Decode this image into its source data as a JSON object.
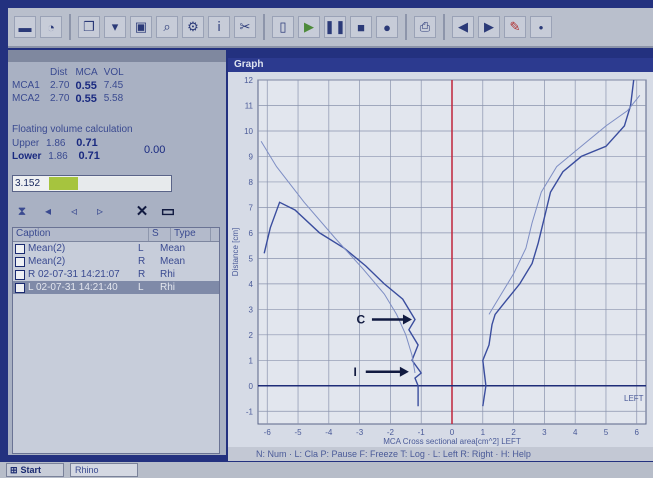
{
  "toolbar": {
    "icons": [
      "save-icon",
      "chart-icon",
      "copy-icon",
      "export-icon",
      "print-preview-icon",
      "settings-icon",
      "blank-icon",
      "play-icon",
      "pause-icon",
      "stop-icon",
      "record-icon",
      "printer-icon",
      "arrow-left-icon",
      "arrow-right-icon",
      "cursor-icon",
      "dot-icon"
    ]
  },
  "mca_table": {
    "headers": [
      "",
      "Dist",
      "MCA",
      "VOL"
    ],
    "rows": [
      [
        "MCA1",
        "2.70",
        "0.55",
        "7.45"
      ],
      [
        "MCA2",
        "2.70",
        "0.55",
        "5.58"
      ]
    ]
  },
  "floating_volume": {
    "title": "Floating volume calculation",
    "upper_label": "Upper",
    "upper_dist": "1.86",
    "upper_mca": "0.71",
    "lower_label": "Lower",
    "lower_dist": "1.86",
    "lower_mca": "0.71",
    "avg": "0.00"
  },
  "progress": {
    "value_text": "3.152",
    "fill_fraction": 0.24
  },
  "list": {
    "headers": [
      "Caption",
      "S",
      "Type"
    ],
    "rows": [
      {
        "caption": "Mean(2)",
        "side": "L",
        "type": "Mean",
        "selected": false
      },
      {
        "caption": "Mean(2)",
        "side": "R",
        "type": "Mean",
        "selected": false
      },
      {
        "caption": "R 02-07-31 14:21:07",
        "side": "R",
        "type": "Rhi",
        "selected": false
      },
      {
        "caption": "L 02-07-31 14:21:40",
        "side": "L",
        "type": "Rhi",
        "selected": true
      }
    ]
  },
  "graph": {
    "title": "Graph",
    "ylabel": "Distance [cm]",
    "xlabel": "MCA  Cross sectional area[cm^2]  LEFT",
    "corner_label": "LEFT",
    "annotation_c": "C",
    "annotation_i": "I"
  },
  "chart_data": {
    "type": "line",
    "x_ticks": [
      -6,
      -5,
      -4,
      -3,
      -2,
      -1,
      0,
      1,
      2,
      3,
      4,
      5,
      6
    ],
    "y_ticks": [
      -1,
      0,
      1,
      2,
      3,
      4,
      5,
      6,
      7,
      8,
      9,
      10,
      11,
      12
    ],
    "xlim": [
      -6.3,
      6.3
    ],
    "ylim": [
      -1.5,
      12
    ],
    "grid": true,
    "vline_x": 0,
    "hline_y": 0,
    "series": [
      {
        "side": "left",
        "style": "dark",
        "points": [
          [
            -1.1,
            -0.8
          ],
          [
            -1.1,
            0
          ],
          [
            -1.2,
            0.3
          ],
          [
            -1.0,
            0.5
          ],
          [
            -1.3,
            1.0
          ],
          [
            -1.1,
            1.6
          ],
          [
            -1.4,
            2.2
          ],
          [
            -1.2,
            2.6
          ],
          [
            -1.6,
            3.4
          ],
          [
            -2.2,
            4.0
          ],
          [
            -2.8,
            4.7
          ],
          [
            -3.5,
            5.4
          ],
          [
            -4.3,
            6.0
          ],
          [
            -5.1,
            6.9
          ],
          [
            -5.6,
            7.2
          ],
          [
            -5.9,
            6.2
          ],
          [
            -6.1,
            5.2
          ]
        ]
      },
      {
        "side": "left",
        "style": "light",
        "points": [
          [
            -1.2,
            0.5
          ],
          [
            -1.3,
            1.2
          ],
          [
            -1.5,
            2.0
          ],
          [
            -1.8,
            2.8
          ],
          [
            -2.2,
            3.6
          ],
          [
            -2.9,
            4.6
          ],
          [
            -3.8,
            5.8
          ],
          [
            -4.8,
            7.2
          ],
          [
            -5.7,
            8.6
          ],
          [
            -6.2,
            9.6
          ]
        ]
      },
      {
        "side": "right",
        "style": "dark",
        "points": [
          [
            1.0,
            -0.8
          ],
          [
            1.1,
            0
          ],
          [
            1.0,
            1.0
          ],
          [
            1.2,
            1.6
          ],
          [
            1.3,
            2.4
          ],
          [
            1.4,
            2.8
          ],
          [
            1.8,
            3.4
          ],
          [
            2.2,
            4.0
          ],
          [
            2.6,
            4.8
          ],
          [
            2.8,
            5.6
          ],
          [
            3.0,
            6.6
          ],
          [
            3.2,
            7.6
          ],
          [
            3.6,
            8.4
          ],
          [
            4.2,
            9.0
          ],
          [
            5.0,
            9.4
          ],
          [
            5.6,
            10.2
          ],
          [
            5.8,
            11.0
          ],
          [
            5.9,
            12.0
          ]
        ]
      },
      {
        "side": "right",
        "style": "light",
        "points": [
          [
            1.2,
            2.8
          ],
          [
            1.6,
            3.6
          ],
          [
            2.0,
            4.4
          ],
          [
            2.4,
            5.4
          ],
          [
            2.6,
            6.4
          ],
          [
            2.9,
            7.6
          ],
          [
            3.4,
            8.6
          ],
          [
            4.2,
            9.4
          ],
          [
            5.0,
            10.2
          ],
          [
            5.7,
            10.8
          ],
          [
            6.1,
            11.4
          ]
        ]
      }
    ]
  },
  "bottom_bar": "  N: Num  ·  L: Cla   P: Pause  F: Freeze  T: Log  ·  L: Left  R: Right  ·  H: Help",
  "taskbar": {
    "start_label": "Start",
    "task_label": "Rhino"
  }
}
